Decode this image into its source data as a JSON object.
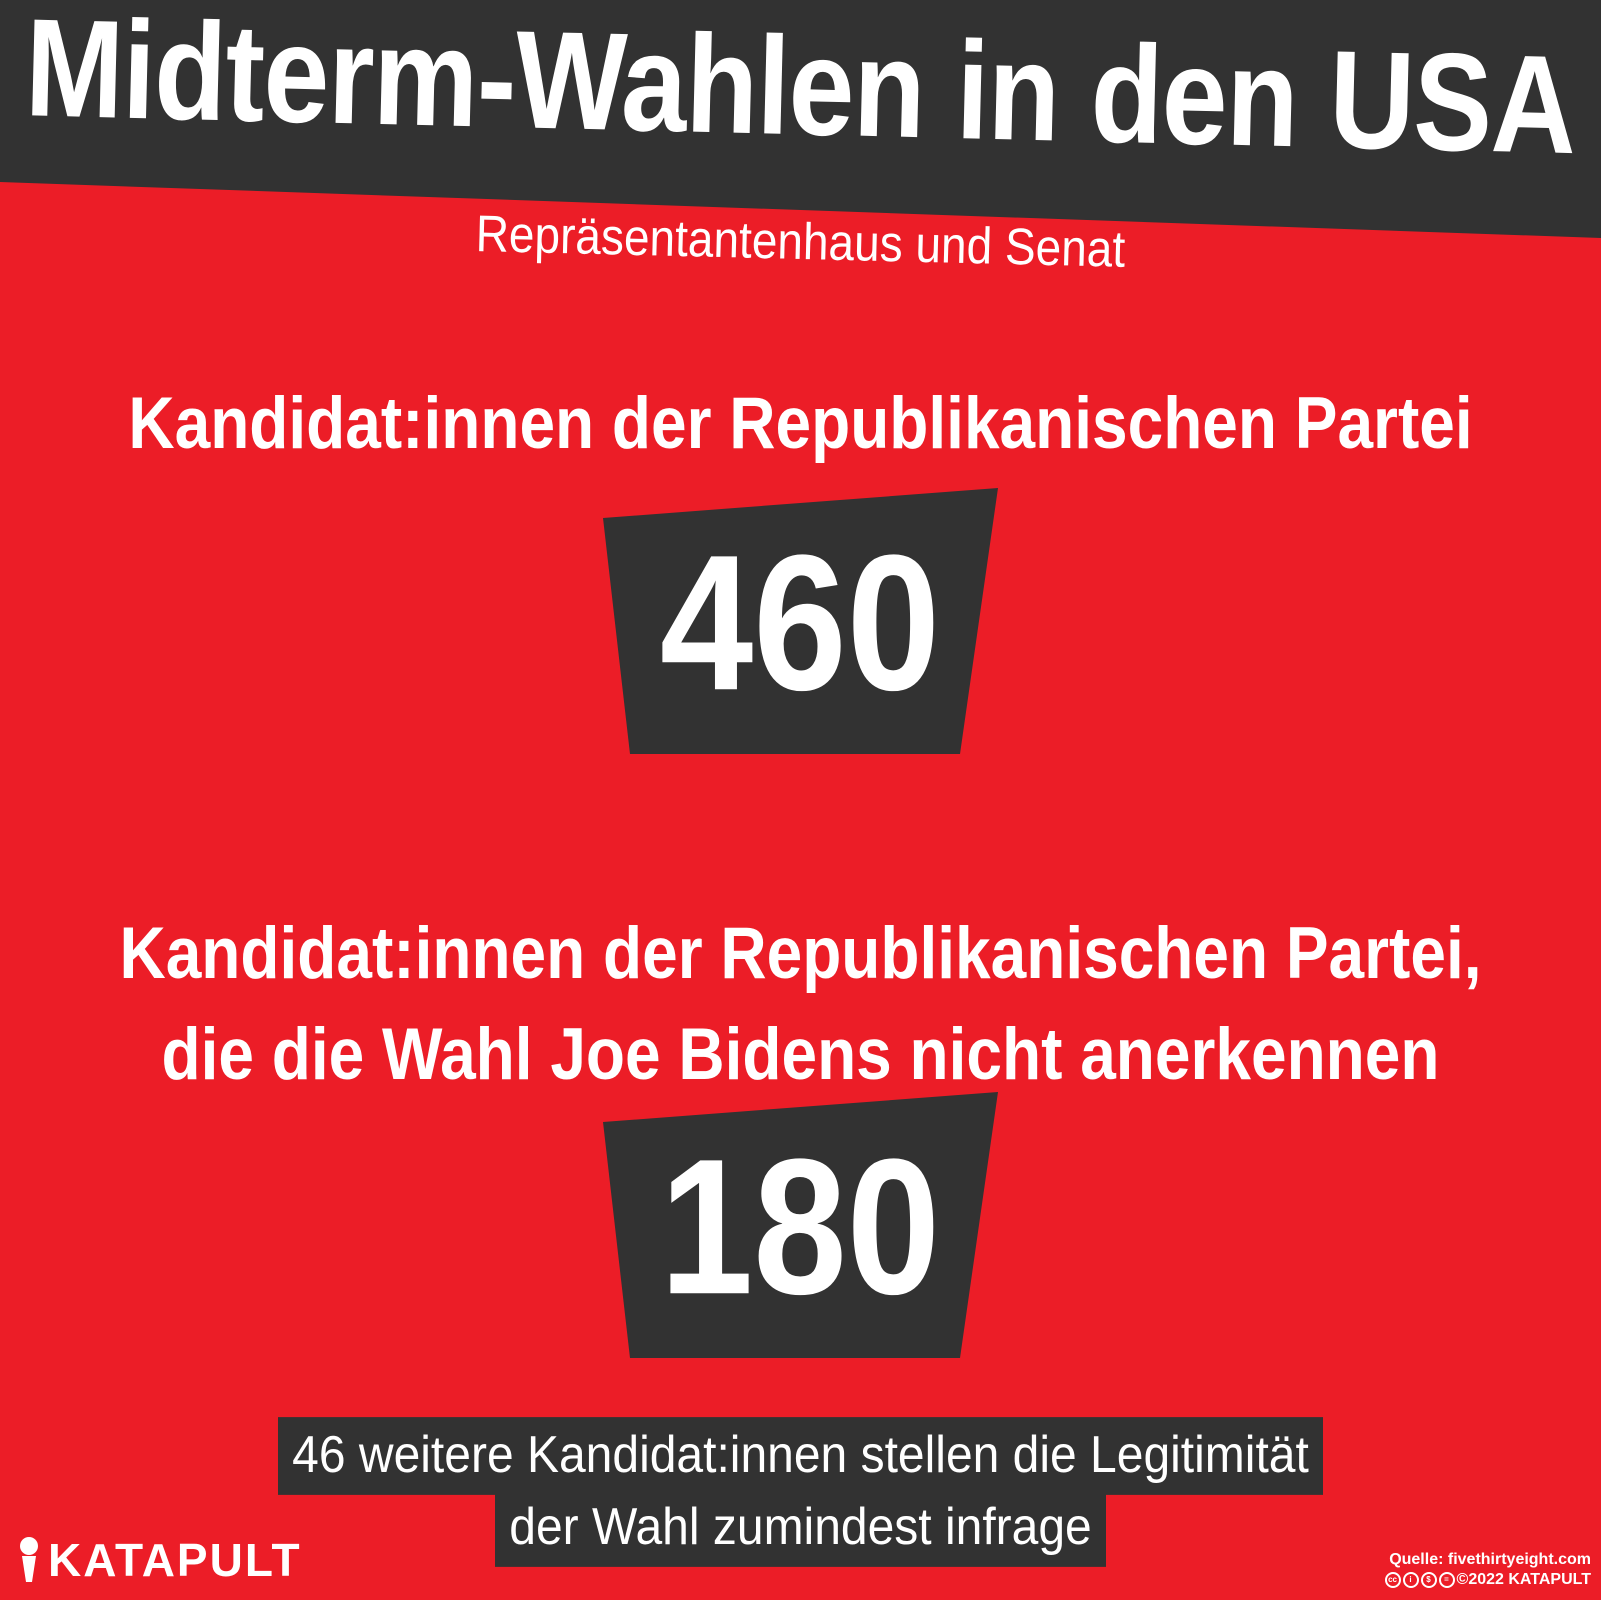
{
  "colors": {
    "background": "#ec1d27",
    "dark": "#323232",
    "text": "#ffffff"
  },
  "header": {
    "title": "Midterm-Wahlen in den USA",
    "subtitle": "Repräsentantenhaus und Senat"
  },
  "stats": [
    {
      "label_lines": [
        "Kandidat:innen der Republikanischen Partei"
      ],
      "value": "460"
    },
    {
      "label_lines": [
        "Kandidat:innen der Republikanischen Partei,",
        "die die Wahl Joe Bidens nicht anerkennen"
      ],
      "value": "180"
    }
  ],
  "note": {
    "lines": [
      "46 weitere Kandidat:innen stellen die Legitimität",
      "der Wahl zumindest infrage"
    ]
  },
  "footer": {
    "logo_text": "KATAPULT",
    "logo_icon": "katapult-logo-icon",
    "source": "Quelle: fivethirtyeight.com",
    "license": "2022 KATAPULT",
    "license_icons": [
      "cc-icon",
      "by-icon",
      "nc-icon",
      "nd-icon"
    ]
  }
}
